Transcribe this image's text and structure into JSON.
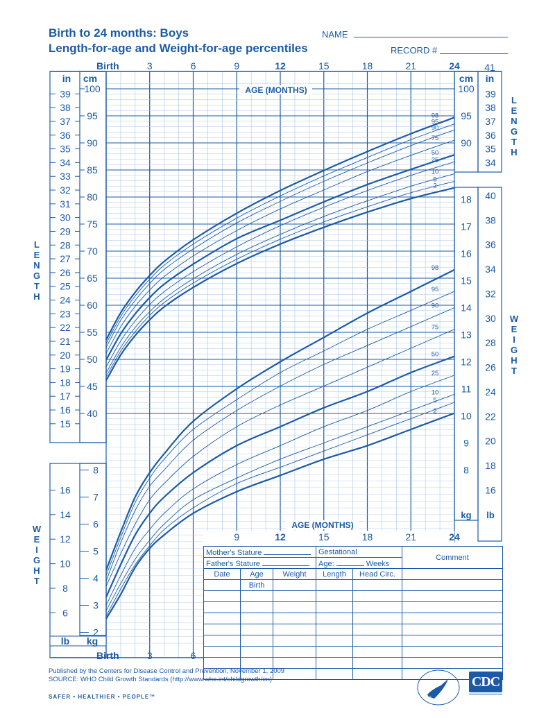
{
  "header": {
    "title_line1": "Birth to 24 months: Boys",
    "title_line2": "Length-for-age and Weight-for-age percentiles",
    "name_label": "NAME",
    "record_label": "RECORD #"
  },
  "axis_labels": {
    "birth": "Birth",
    "age_months": "AGE (MONTHS)",
    "cm": "cm",
    "in": "in",
    "kg": "kg",
    "lb": "lb",
    "in_41": "41",
    "top_ticks": [
      "Birth",
      "3",
      "6",
      "9",
      "12",
      "15",
      "18",
      "21",
      "24"
    ],
    "bottom_ticks": [
      "Birth",
      "3",
      "6"
    ],
    "lower_ticks": [
      "9",
      "12",
      "15",
      "18",
      "21",
      "24"
    ]
  },
  "vertical_labels": {
    "length": "LENGTH",
    "weight": "WEIGHT"
  },
  "form": {
    "mothers_stature": "Mother's Stature",
    "fathers_stature": "Father's Stature",
    "gestational": "Gestational",
    "age": "Age:",
    "weeks": "Weeks",
    "comment": "Comment",
    "col_date": "Date",
    "col_age": "Age",
    "col_weight": "Weight",
    "col_length": "Length",
    "col_head": "Head Circ.",
    "birth": "Birth"
  },
  "footer": {
    "published": "Published by the Centers for Disease Control and Prevention, November 1, 2009",
    "source": "SOURCE:  WHO Child Growth Standards (http://www.who.int/childgrowth/en)",
    "safer": "SAFER • HEALTHIER • PEOPLE™",
    "cdc": "CDC"
  },
  "colors": {
    "primary": "#1a5aa6",
    "grid_light": "#a9c6e8",
    "grid_major": "#1a5aa6"
  },
  "chart_data": {
    "type": "line",
    "title": "Length-for-age and Weight-for-age percentiles",
    "x": [
      0,
      1,
      2,
      3,
      4,
      6,
      9,
      12,
      15,
      18,
      21,
      24
    ],
    "xlim": [
      0,
      24
    ],
    "xlabel": "AGE (MONTHS)",
    "percentiles": [
      "2",
      "5",
      "10",
      "25",
      "50",
      "75",
      "90",
      "95",
      "98"
    ],
    "bold_percentiles": [
      "2",
      "50",
      "98"
    ],
    "length": {
      "ylabel": "cm",
      "ylim": [
        36,
        101
      ],
      "left_cm_ticks": [
        "100",
        "95",
        "90",
        "85",
        "80",
        "75",
        "70",
        "65",
        "60",
        "55",
        "50",
        "45",
        "40"
      ],
      "left_in_ticks": [
        "39",
        "38",
        "37",
        "36",
        "35",
        "34",
        "33",
        "32",
        "31",
        "30",
        "29",
        "28",
        "27",
        "26",
        "25",
        "24",
        "23",
        "22",
        "21",
        "20",
        "19",
        "18",
        "17",
        "16",
        "15"
      ],
      "right_cm_ticks": [
        "100",
        "95",
        "90"
      ],
      "right_in_ticks": [
        "39",
        "38",
        "37",
        "36",
        "35",
        "34"
      ],
      "series": [
        {
          "name": "2",
          "values": [
            46.1,
            50.8,
            54.4,
            57.3,
            59.7,
            63.3,
            67.7,
            71.3,
            74.4,
            77.2,
            79.7,
            81.7
          ]
        },
        {
          "name": "5",
          "values": [
            46.8,
            51.5,
            55.1,
            58.1,
            60.5,
            64.1,
            68.5,
            72.2,
            75.4,
            78.2,
            80.8,
            82.9
          ]
        },
        {
          "name": "10",
          "values": [
            47.5,
            52.2,
            55.9,
            58.8,
            61.2,
            64.9,
            69.4,
            73.1,
            76.4,
            79.3,
            82.0,
            84.3
          ]
        },
        {
          "name": "25",
          "values": [
            48.6,
            53.4,
            57.1,
            60.1,
            62.5,
            66.2,
            70.8,
            74.7,
            78.1,
            81.2,
            84.0,
            86.5
          ]
        },
        {
          "name": "50",
          "values": [
            49.9,
            54.7,
            58.4,
            61.4,
            63.9,
            67.6,
            72.3,
            75.7,
            79.1,
            82.3,
            85.1,
            87.8
          ]
        },
        {
          "name": "75",
          "values": [
            51.1,
            56.0,
            59.8,
            62.8,
            65.3,
            69.1,
            73.8,
            77.8,
            81.3,
            84.7,
            87.7,
            90.5
          ]
        },
        {
          "name": "90",
          "values": [
            52.2,
            57.2,
            60.9,
            64.0,
            66.6,
            70.4,
            75.2,
            79.2,
            82.9,
            86.3,
            89.5,
            92.4
          ]
        },
        {
          "name": "95",
          "values": [
            52.9,
            57.9,
            61.7,
            64.8,
            67.4,
            71.3,
            76.1,
            80.2,
            83.9,
            87.3,
            90.6,
            93.5
          ]
        },
        {
          "name": "98",
          "values": [
            53.6,
            58.6,
            62.4,
            65.5,
            68.1,
            72.1,
            77.0,
            81.2,
            84.9,
            88.4,
            91.7,
            94.7
          ]
        }
      ]
    },
    "weight": {
      "ylabel": "kg",
      "ylim": [
        1.6,
        18.6
      ],
      "left_kg_ticks": [
        "8",
        "7",
        "6",
        "5",
        "4",
        "3",
        "2"
      ],
      "left_lb_ticks": [
        "16",
        "14",
        "12",
        "10",
        "8",
        "6"
      ],
      "right_kg_ticks": [
        "18",
        "17",
        "16",
        "15",
        "14",
        "13",
        "12",
        "11",
        "10",
        "9",
        "8"
      ],
      "right_lb_ticks": [
        "40",
        "38",
        "36",
        "34",
        "32",
        "30",
        "28",
        "26",
        "24",
        "22",
        "20",
        "18",
        "16"
      ],
      "series": [
        {
          "name": "2",
          "values": [
            2.5,
            3.4,
            4.4,
            5.1,
            5.6,
            6.4,
            7.2,
            7.8,
            8.4,
            8.9,
            9.5,
            10.1
          ]
        },
        {
          "name": "5",
          "values": [
            2.6,
            3.6,
            4.5,
            5.2,
            5.8,
            6.6,
            7.5,
            8.1,
            8.7,
            9.3,
            9.9,
            10.5
          ]
        },
        {
          "name": "10",
          "values": [
            2.8,
            3.8,
            4.7,
            5.4,
            6.0,
            6.9,
            7.7,
            8.4,
            9.0,
            9.6,
            10.2,
            10.8
          ]
        },
        {
          "name": "25",
          "values": [
            3.0,
            4.1,
            5.1,
            5.8,
            6.4,
            7.3,
            8.2,
            8.9,
            9.6,
            10.2,
            10.9,
            11.5
          ]
        },
        {
          "name": "50",
          "values": [
            3.3,
            4.5,
            5.6,
            6.4,
            7.0,
            7.9,
            8.9,
            9.6,
            10.3,
            10.9,
            11.6,
            12.2
          ]
        },
        {
          "name": "75",
          "values": [
            3.7,
            4.9,
            6.0,
            6.9,
            7.5,
            8.5,
            9.6,
            10.4,
            11.1,
            11.8,
            12.5,
            13.2
          ]
        },
        {
          "name": "90",
          "values": [
            3.9,
            5.3,
            6.5,
            7.4,
            8.0,
            9.1,
            10.2,
            11.1,
            11.9,
            12.6,
            13.3,
            14.0
          ]
        },
        {
          "name": "95",
          "values": [
            4.1,
            5.5,
            6.8,
            7.7,
            8.4,
            9.5,
            10.6,
            11.6,
            12.4,
            13.2,
            13.9,
            14.6
          ]
        },
        {
          "name": "98",
          "values": [
            4.3,
            5.7,
            7.0,
            7.9,
            8.6,
            9.8,
            11.0,
            12.0,
            12.9,
            13.8,
            14.6,
            15.4
          ]
        }
      ]
    }
  }
}
